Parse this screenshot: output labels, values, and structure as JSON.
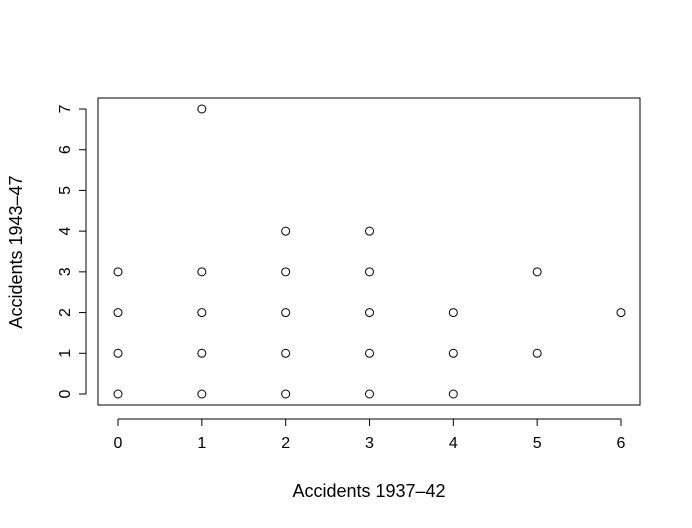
{
  "chart_data": {
    "type": "scatter",
    "title": "",
    "xlabel": "Accidents 1937–42",
    "ylabel": "Accidents 1943–47",
    "xlim": [
      0,
      6
    ],
    "ylim": [
      0,
      7
    ],
    "x_ticks": [
      "0",
      "1",
      "2",
      "3",
      "4",
      "5",
      "6"
    ],
    "y_ticks": [
      "0",
      "1",
      "2",
      "3",
      "4",
      "5",
      "6",
      "7"
    ],
    "grid": false,
    "legend": "none",
    "marker": "open-circle",
    "points": [
      {
        "x": 0,
        "y": 0
      },
      {
        "x": 0,
        "y": 1
      },
      {
        "x": 0,
        "y": 2
      },
      {
        "x": 0,
        "y": 3
      },
      {
        "x": 1,
        "y": 0
      },
      {
        "x": 1,
        "y": 1
      },
      {
        "x": 1,
        "y": 2
      },
      {
        "x": 1,
        "y": 3
      },
      {
        "x": 1,
        "y": 7
      },
      {
        "x": 2,
        "y": 0
      },
      {
        "x": 2,
        "y": 1
      },
      {
        "x": 2,
        "y": 2
      },
      {
        "x": 2,
        "y": 3
      },
      {
        "x": 2,
        "y": 4
      },
      {
        "x": 3,
        "y": 0
      },
      {
        "x": 3,
        "y": 1
      },
      {
        "x": 3,
        "y": 2
      },
      {
        "x": 3,
        "y": 3
      },
      {
        "x": 3,
        "y": 4
      },
      {
        "x": 4,
        "y": 0
      },
      {
        "x": 4,
        "y": 1
      },
      {
        "x": 4,
        "y": 2
      },
      {
        "x": 5,
        "y": 1
      },
      {
        "x": 5,
        "y": 3
      },
      {
        "x": 6,
        "y": 2
      }
    ]
  }
}
